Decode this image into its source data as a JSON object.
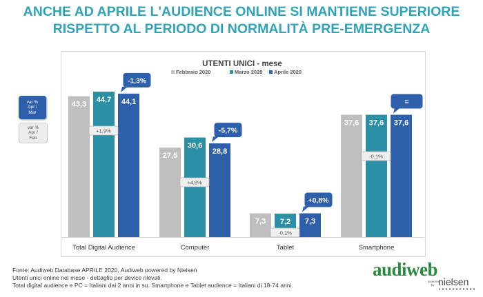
{
  "header": {
    "title_line1": "ANCHE AD APRILE L'AUDIENCE ONLINE SI MANTIENE SUPERIORE",
    "title_line2": "RISPETTO AL PERIODO DI NORMALITÀ PRE-EMERGENZA"
  },
  "side_legend": {
    "mar": [
      "var %",
      "Apr /",
      "Mar"
    ],
    "feb": [
      "var %",
      "Apr /",
      "Feb"
    ]
  },
  "chart_data": {
    "type": "bar",
    "title": "UTENTI UNICI - mese",
    "categories": [
      "Total Digital Audience",
      "Computer",
      "Tablet",
      "Smartphone"
    ],
    "series": [
      {
        "name": "Febbraio 2020",
        "values": [
          43.3,
          27.5,
          7.3,
          37.6
        ]
      },
      {
        "name": "Marzo 2020",
        "values": [
          44.7,
          30.6,
          7.2,
          37.6
        ]
      },
      {
        "name": "Aprile 2020",
        "values": [
          44.1,
          28.8,
          7.3,
          37.6
        ]
      }
    ],
    "value_labels": [
      [
        "43,3",
        "27,5",
        "7,3",
        "37,6"
      ],
      [
        "44,7",
        "30,6",
        "7,2",
        "37,6"
      ],
      [
        "44,1",
        "28,8",
        "7,3",
        "37,6"
      ]
    ],
    "var_apr_mar": [
      "-1,3%",
      "-5,7%",
      "+0,8%",
      "="
    ],
    "var_apr_feb": [
      "+1,9%",
      "+4,8%",
      "-0,1%",
      "-0,1%"
    ],
    "ylim": [
      0,
      50
    ],
    "grid": false,
    "legend_position": "top-center",
    "colors": [
      "#bfbfbf",
      "#2b8fa5",
      "#2e5faa"
    ]
  },
  "footnotes": [
    "Fonte: Audiweb Database APRILE 2020, Audiweb powered by Nielsen",
    "Utenti unici online nel mese - dettaglio per device rilevati.",
    "Total digital audience e PC = Italiani dai 2 anni in su. Smartphone e Tablet audience = Italiani di 18-74 anni."
  ],
  "logo": {
    "brand": "audiweb",
    "powered": "powered by",
    "partner": "nielsen"
  }
}
